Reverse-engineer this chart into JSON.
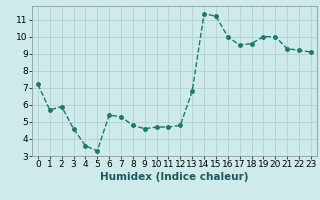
{
  "x": [
    0,
    1,
    2,
    3,
    4,
    5,
    6,
    7,
    8,
    9,
    10,
    11,
    12,
    13,
    14,
    15,
    16,
    17,
    18,
    19,
    20,
    21,
    22,
    23
  ],
  "y": [
    7.2,
    5.7,
    5.9,
    4.6,
    3.6,
    3.3,
    5.4,
    5.3,
    4.8,
    4.6,
    4.7,
    4.7,
    4.8,
    6.8,
    11.35,
    11.2,
    10.0,
    9.5,
    9.6,
    10.0,
    10.0,
    9.3,
    9.2,
    9.1
  ],
  "line_color": "#1a7a6a",
  "marker": "o",
  "marker_size": 2.5,
  "linewidth": 1.0,
  "linestyle": "--",
  "xlabel": "Humidex (Indice chaleur)",
  "ylabel": "",
  "xlim": [
    -0.5,
    23.5
  ],
  "ylim": [
    3,
    11.8
  ],
  "yticks": [
    3,
    4,
    5,
    6,
    7,
    8,
    9,
    10,
    11
  ],
  "xticks": [
    0,
    1,
    2,
    3,
    4,
    5,
    6,
    7,
    8,
    9,
    10,
    11,
    12,
    13,
    14,
    15,
    16,
    17,
    18,
    19,
    20,
    21,
    22,
    23
  ],
  "bg_color": "#ceeaea",
  "grid_color": "#aacece",
  "tick_label_size": 6.5,
  "xlabel_size": 7.5
}
